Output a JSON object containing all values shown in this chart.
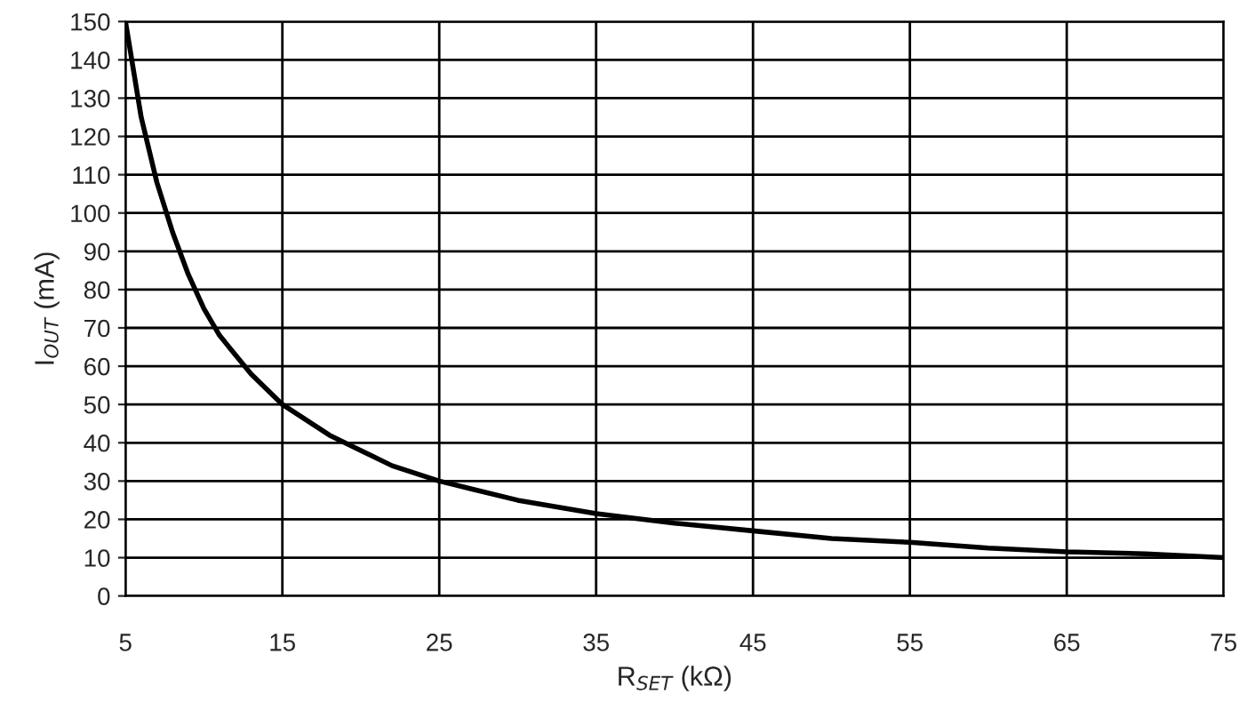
{
  "chart_data": {
    "type": "line",
    "xlabel": "R$_{SET}$ (kΩ)",
    "ylabel": "I$_{OUT}$ (mA)",
    "x": [
      5,
      6,
      7,
      8,
      9,
      10,
      11,
      12,
      13,
      15,
      18,
      20,
      22,
      25,
      27,
      30,
      35,
      40,
      45,
      50,
      55,
      60,
      65,
      70,
      75
    ],
    "series": [
      {
        "color": "#000000",
        "values": [
          150,
          125,
          108,
          95,
          84,
          75,
          68,
          63,
          58,
          50,
          42,
          38,
          34,
          30,
          28,
          25,
          21.5,
          19,
          17,
          15,
          14,
          12.5,
          11.5,
          11,
          10
        ]
      }
    ],
    "xlim": [
      5,
      75
    ],
    "xticks": [
      5,
      15,
      25,
      35,
      45,
      55,
      65,
      75
    ],
    "ylim": [
      0,
      150
    ],
    "yticks": [
      0,
      10,
      20,
      30,
      40,
      50,
      60,
      70,
      80,
      90,
      100,
      110,
      120,
      130,
      140,
      150
    ],
    "grid": true,
    "marker": "none",
    "line_style": "solid"
  }
}
